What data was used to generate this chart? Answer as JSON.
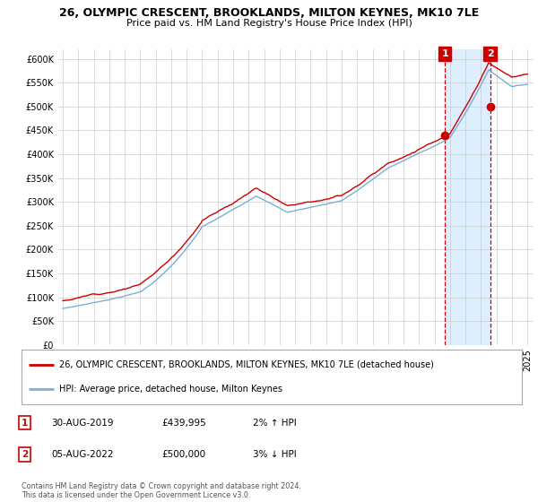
{
  "title": "26, OLYMPIC CRESCENT, BROOKLANDS, MILTON KEYNES, MK10 7LE",
  "subtitle": "Price paid vs. HM Land Registry's House Price Index (HPI)",
  "ylim": [
    0,
    620000
  ],
  "yticks": [
    0,
    50000,
    100000,
    150000,
    200000,
    250000,
    300000,
    350000,
    400000,
    450000,
    500000,
    550000,
    600000
  ],
  "sale1_year": 2019.667,
  "sale1_value": 439995,
  "sale2_year": 2022.583,
  "sale2_value": 500000,
  "legend_line1": "26, OLYMPIC CRESCENT, BROOKLANDS, MILTON KEYNES, MK10 7LE (detached house)",
  "legend_line2": "HPI: Average price, detached house, Milton Keynes",
  "note1_date": "30-AUG-2019",
  "note1_price": "£439,995",
  "note1_hpi": "2% ↑ HPI",
  "note2_date": "05-AUG-2022",
  "note2_price": "£500,000",
  "note2_hpi": "3% ↓ HPI",
  "copyright": "Contains HM Land Registry data © Crown copyright and database right 2024.\nThis data is licensed under the Open Government Licence v3.0.",
  "line_color_price": "#cc0000",
  "line_color_hpi": "#7bafd4",
  "marker_color": "#cc0000",
  "annotation_box_color": "#cc0000",
  "highlight_color": "#ddeeff",
  "background_color": "#ffffff",
  "grid_color": "#cccccc"
}
